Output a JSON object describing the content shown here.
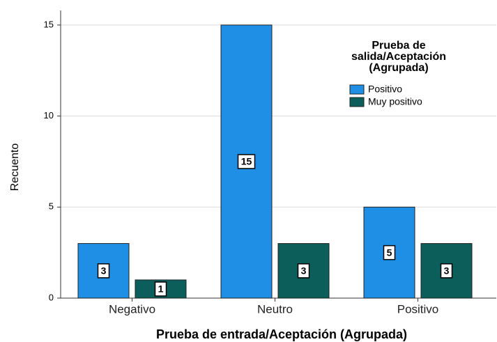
{
  "chart_data": {
    "type": "bar",
    "x_label": "Prueba de entrada/Aceptación (Agrupada)",
    "y_label": "Recuento",
    "legend_title_lines": [
      "Prueba de",
      "salida/Aceptación",
      "(Agrupada)"
    ],
    "categories": [
      "Negativo",
      "Neutro",
      "Positivo"
    ],
    "series": [
      {
        "name": "Positivo",
        "color": "#1f8fe6",
        "values": [
          3,
          15,
          5
        ]
      },
      {
        "name": "Muy positivo",
        "color": "#0b5e5a",
        "values": [
          1,
          3,
          3
        ]
      }
    ],
    "ylim": [
      0,
      15.8
    ],
    "yticks": [
      0,
      5,
      10,
      15
    ],
    "grid": true,
    "legend": "upper right"
  }
}
